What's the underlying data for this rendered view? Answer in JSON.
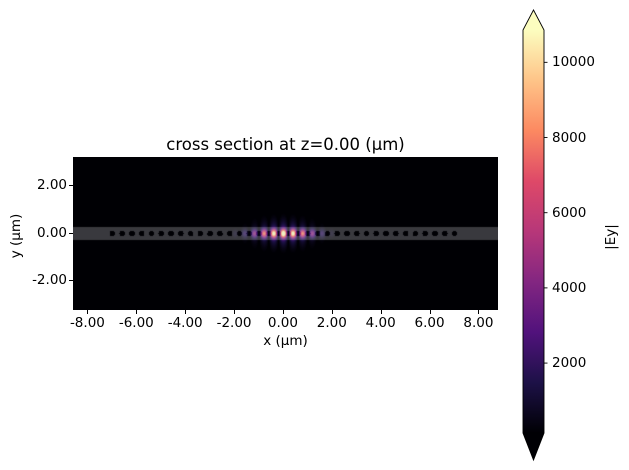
{
  "figure": {
    "background": "#ffffff",
    "text_color": "#000000"
  },
  "chart_data": {
    "type": "heatmap",
    "title": "cross section at z=0.00 (μm)",
    "xlabel": "x (μm)",
    "ylabel": "y (μm)",
    "xlim": [
      -8.59,
      8.8
    ],
    "ylim": [
      -3.24,
      3.2
    ],
    "grid": false,
    "background_value": 0,
    "x_ticks": {
      "values": [
        -8,
        -6,
        -4,
        -2,
        0,
        2,
        4,
        6,
        8
      ],
      "labels": [
        "-8.00",
        "-6.00",
        "-4.00",
        "-2.00",
        "0.00",
        "2.00",
        "4.00",
        "6.00",
        "8.00"
      ]
    },
    "y_ticks": {
      "values": [
        2,
        0,
        -2
      ],
      "labels": [
        "2.00",
        "0.00",
        "-2.00"
      ]
    },
    "colorbar": {
      "label": "|Ey|",
      "colormap": "magma",
      "extend": "both",
      "vmin": 140,
      "vmax": 10860,
      "tick_values": [
        2000,
        4000,
        6000,
        8000,
        10000
      ],
      "tick_labels": [
        "2000",
        "4000",
        "6000",
        "8000",
        "10000"
      ],
      "stops": [
        [
          0.0,
          "#000004"
        ],
        [
          0.125,
          "#1d1147"
        ],
        [
          0.25,
          "#51127c"
        ],
        [
          0.375,
          "#832681"
        ],
        [
          0.5,
          "#b73779"
        ],
        [
          0.625,
          "#de4968"
        ],
        [
          0.75,
          "#fc8961"
        ],
        [
          0.875,
          "#fec488"
        ],
        [
          1.0,
          "#fcfdbf"
        ]
      ]
    },
    "structure": {
      "description": "photonic-crystal nanobeam waveguide with hole array",
      "waveguide_halfwidth_um": 0.26,
      "overlay_rgb": [
        205,
        205,
        210
      ],
      "overlay_alpha": 0.28,
      "hole_radius_um": 0.115,
      "hole_first_offset_um": 0.2,
      "hole_pitch_um": 0.4,
      "holes_per_side": 18
    },
    "mode": {
      "description": "localized cavity mode |Ey| centered at x=0",
      "peak_value": 10860,
      "lobe_period_um": 0.4,
      "lobe_sharpness": 1.7,
      "envelope_sigma_x_um": 1.15,
      "core_sigma_y_um": 0.17,
      "halo_sigma_y_um": 0.52,
      "halo_amplitude": 0.22
    }
  }
}
